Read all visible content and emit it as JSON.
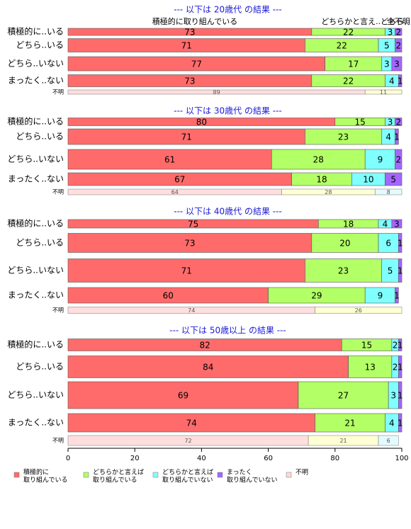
{
  "chart_data": {
    "type": "bar",
    "orientation": "horizontal",
    "stacked": true,
    "xlim": [
      0,
      100
    ],
    "xticks": [
      "0",
      "20",
      "40",
      "60",
      "80",
      "100"
    ],
    "header_labels": [
      "積極的に取り組んでいる",
      "どちらかと言え..どちら..",
      "全不明"
    ],
    "colors": {
      "active": "#ff6b6b",
      "somewhat_active": "#b3ff66",
      "somewhat_inactive": "#80ffff",
      "inactive": "#a566ff",
      "unknown": "#ffd9d9"
    },
    "unknown_colors": [
      "#ffdede",
      "#ffffd4",
      "#e3fbff"
    ],
    "legend": [
      {
        "key": "active",
        "label": "積極的に\n取り組んでいる"
      },
      {
        "key": "somewhat_active",
        "label": "どちらかと言えば\n取り組んでいる"
      },
      {
        "key": "somewhat_inactive",
        "label": "どちらかと言えば\n取り組んでいない"
      },
      {
        "key": "inactive",
        "label": "まったく\n取り組んでいない"
      },
      {
        "key": "unknown",
        "label": "不明"
      }
    ],
    "panels": [
      {
        "title": "--- 以下は 20歳代 の結果 ---",
        "rows": [
          {
            "label": "積極的に..いる",
            "values": [
              73,
              22,
              3,
              2
            ]
          },
          {
            "label": "どちら..いる",
            "values": [
              71,
              22,
              5,
              2
            ]
          },
          {
            "label": "どちら..いない",
            "values": [
              77,
              17,
              3,
              3
            ]
          },
          {
            "label": "まったく..ない",
            "values": [
              73,
              22,
              4,
              1
            ]
          }
        ],
        "unknown": {
          "label": "不明",
          "values": [
            89,
            11,
            0
          ]
        }
      },
      {
        "title": "--- 以下は 30歳代 の結果 ---",
        "rows": [
          {
            "label": "積極的に..いる",
            "values": [
              80,
              15,
              3,
              2
            ]
          },
          {
            "label": "どちら..いる",
            "values": [
              71,
              23,
              4,
              1
            ]
          },
          {
            "label": "どちら..いない",
            "values": [
              61,
              28,
              9,
              2
            ]
          },
          {
            "label": "まったく..ない",
            "values": [
              67,
              18,
              10,
              5
            ]
          }
        ],
        "unknown": {
          "label": "不明",
          "values": [
            64,
            28,
            8
          ]
        }
      },
      {
        "title": "--- 以下は 40歳代 の結果 ---",
        "rows": [
          {
            "label": "積極的に..いる",
            "values": [
              75,
              18,
              4,
              3
            ]
          },
          {
            "label": "どちら..いる",
            "values": [
              73,
              20,
              6,
              1
            ]
          },
          {
            "label": "どちら..いない",
            "values": [
              71,
              23,
              5,
              1
            ]
          },
          {
            "label": "まったく..ない",
            "values": [
              60,
              29,
              9,
              1
            ]
          }
        ],
        "unknown": {
          "label": "不明",
          "values": [
            74,
            26,
            0
          ]
        }
      },
      {
        "title": "--- 以下は 50歳以上 の結果 ---",
        "rows": [
          {
            "label": "積極的に..いる",
            "values": [
              82,
              15,
              2,
              1
            ]
          },
          {
            "label": "どちら..いる",
            "values": [
              84,
              13,
              2,
              1
            ]
          },
          {
            "label": "どちら..いない",
            "values": [
              69,
              27,
              3,
              1
            ]
          },
          {
            "label": "まったく..ない",
            "values": [
              74,
              21,
              4,
              1
            ]
          }
        ],
        "unknown": {
          "label": "不明",
          "values": [
            72,
            21,
            6
          ]
        }
      }
    ]
  }
}
